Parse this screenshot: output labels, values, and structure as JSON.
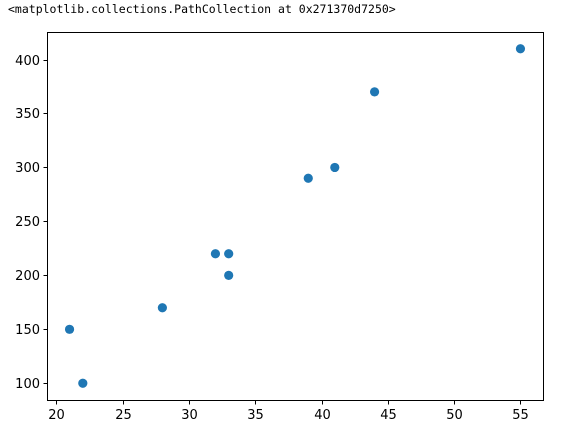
{
  "output_repr": "<matplotlib.collections.PathCollection at 0x271370d7250>",
  "chart_data": {
    "type": "scatter",
    "x": [
      21,
      22,
      28,
      32,
      33,
      33,
      39,
      41,
      44,
      55
    ],
    "y": [
      150,
      100,
      170,
      220,
      220,
      200,
      290,
      300,
      370,
      410
    ],
    "xlim": [
      19.3,
      56.7
    ],
    "ylim": [
      84.5,
      425.5
    ],
    "xticks": [
      20,
      25,
      30,
      35,
      40,
      45,
      50,
      55
    ],
    "yticks": [
      100,
      150,
      200,
      250,
      300,
      350,
      400
    ],
    "marker_color": "#1f77b4",
    "title": "",
    "xlabel": "",
    "ylabel": "",
    "grid": false
  }
}
